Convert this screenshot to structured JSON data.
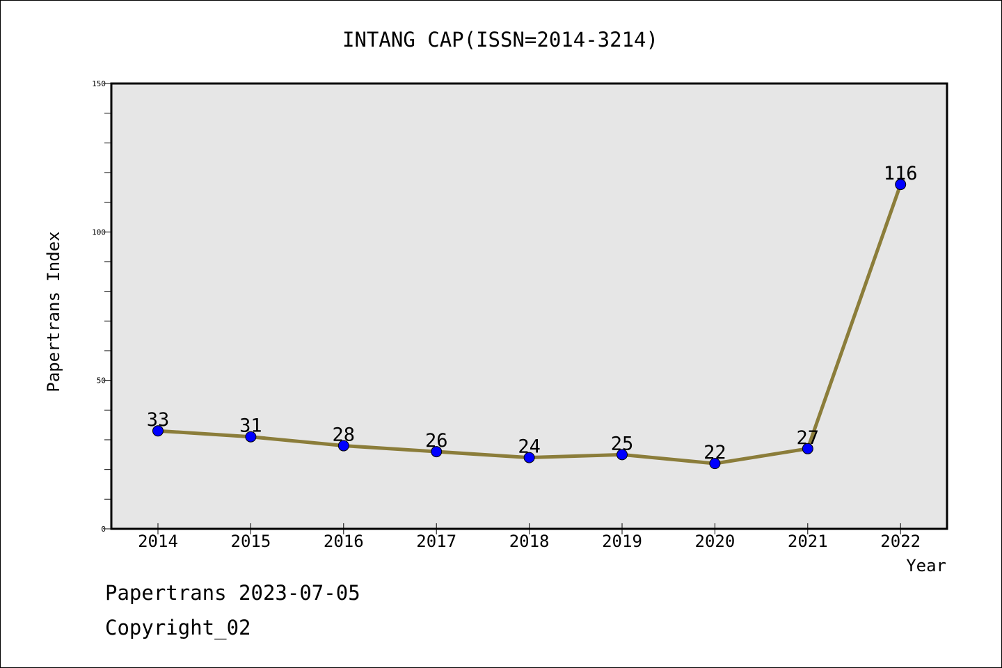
{
  "chart_data": {
    "type": "line",
    "title": "INTANG CAP(ISSN=2014-3214)",
    "xlabel": "Year",
    "ylabel": "Papertrans Index",
    "categories": [
      "2014",
      "2015",
      "2016",
      "2017",
      "2018",
      "2019",
      "2020",
      "2021",
      "2022"
    ],
    "series": [
      {
        "values": [
          33,
          31,
          28,
          26,
          24,
          25,
          22,
          27,
          116
        ]
      }
    ],
    "data_labels": [
      "33",
      "31",
      "28",
      "26",
      "24",
      "25",
      "22",
      "27",
      "116"
    ],
    "ylim": [
      0,
      150
    ],
    "y_ticks": [
      0,
      50,
      100,
      150
    ],
    "y_tick_labels": [
      "0",
      "50",
      "100",
      "150"
    ],
    "grid": false,
    "colors": {
      "line": "#8B7D3A",
      "marker": "#0000FF",
      "plot_background": "#E6E6E6"
    }
  },
  "footer": {
    "line1": "Papertrans 2023-07-05",
    "line2": "Copyright_02"
  }
}
